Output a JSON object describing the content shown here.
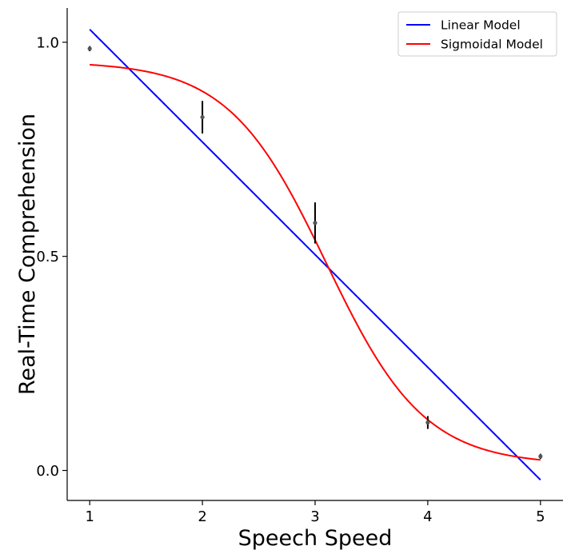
{
  "chart_data": {
    "type": "line",
    "title": "",
    "xlabel": "Speech Speed",
    "ylabel": "Real-Time Comprehension",
    "xlim": [
      0.8,
      5.2
    ],
    "ylim": [
      -0.07,
      1.08
    ],
    "x_ticks": [
      {
        "value": 1,
        "label": "1"
      },
      {
        "value": 2,
        "label": "2"
      },
      {
        "value": 3,
        "label": "3"
      },
      {
        "value": 4,
        "label": "4"
      },
      {
        "value": 5,
        "label": "5"
      }
    ],
    "y_ticks": [
      {
        "value": 0.0,
        "label": "0.0"
      },
      {
        "value": 0.5,
        "label": "0.5"
      },
      {
        "value": 1.0,
        "label": "1.0"
      }
    ],
    "grid": false,
    "legend_position": "top-right",
    "observations": {
      "color": "#555555",
      "error_color": "#000000",
      "points": [
        {
          "x": 1,
          "y": 0.985,
          "error": 0.006
        },
        {
          "x": 2,
          "y": 0.825,
          "error": 0.038
        },
        {
          "x": 3,
          "y": 0.578,
          "error": 0.048
        },
        {
          "x": 4,
          "y": 0.112,
          "error": 0.015
        },
        {
          "x": 5,
          "y": 0.033,
          "error": 0.006
        }
      ]
    },
    "series": [
      {
        "name": "Linear Model",
        "color": "#0000ff",
        "model": "linear",
        "params": {
          "slope": -0.263,
          "intercept": 1.293
        }
      },
      {
        "name": "Sigmoidal Model",
        "color": "#ff0000",
        "model": "logistic",
        "params": {
          "bottom": 0.013,
          "top": 0.955,
          "midpoint": 3.1,
          "rate": 2.3
        }
      }
    ]
  }
}
